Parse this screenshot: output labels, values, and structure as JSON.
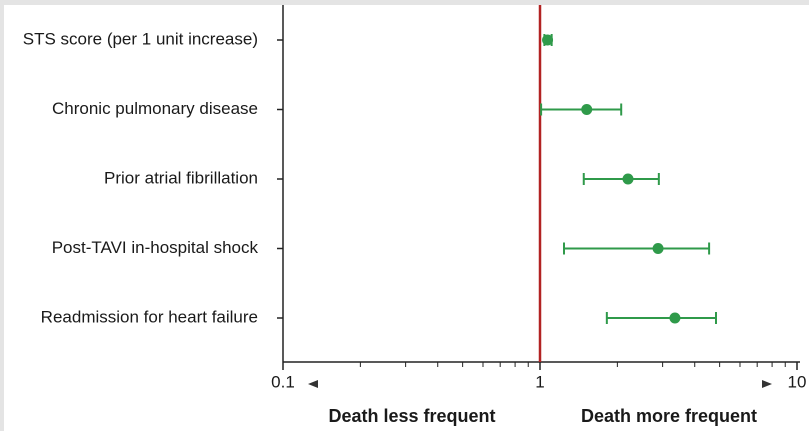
{
  "chart_data": {
    "type": "forest",
    "categories": [
      "STS score (per 1 unit increase)",
      "Chronic pulmonary disease",
      "Prior atrial fibrillation",
      "Post-TAVI in-hospital shock",
      "Readmission for heart failure"
    ],
    "series": [
      {
        "color": "#2f9a4a",
        "values": [
          1.07,
          1.52,
          2.2,
          2.88,
          3.35
        ],
        "lower": [
          1.04,
          1.01,
          1.48,
          1.24,
          1.82
        ],
        "upper": [
          1.11,
          2.07,
          2.9,
          4.55,
          4.84
        ]
      }
    ],
    "xscale": "log",
    "xlim": [
      0.1,
      10
    ],
    "xticks": [
      0.1,
      1,
      10
    ],
    "xminor_ticks": [
      0.2,
      0.3,
      0.4,
      0.5,
      0.6,
      0.7,
      0.8,
      0.9,
      2,
      3,
      4,
      5,
      6,
      7,
      8,
      9
    ],
    "reference_line": 1,
    "reference_color": "#b22222",
    "annotations": [
      "Death less frequent",
      "Death more frequent"
    ]
  }
}
